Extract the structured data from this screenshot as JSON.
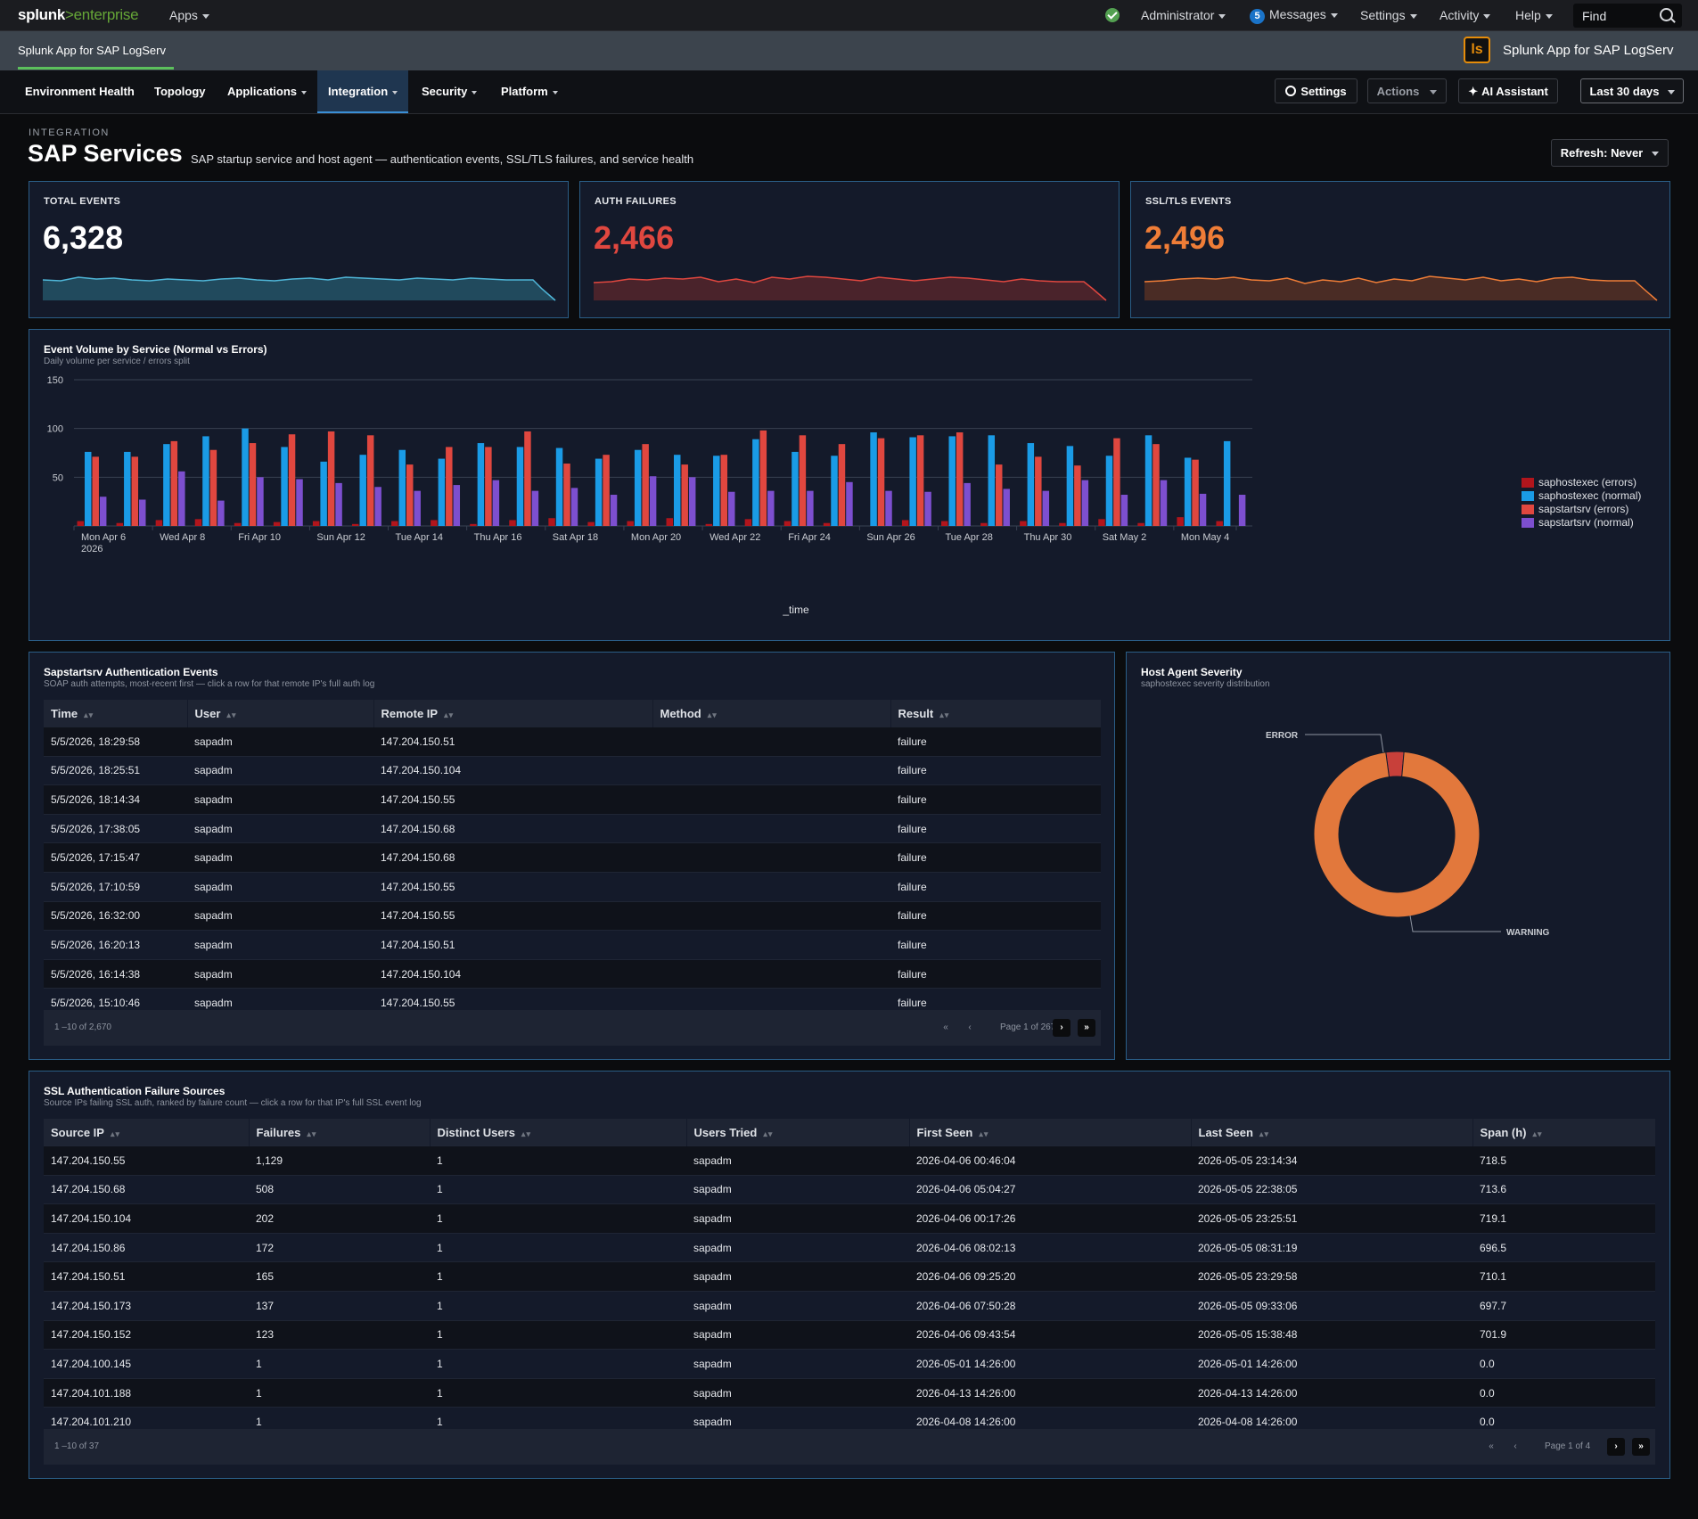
{
  "topbar": {
    "logo_main": "splunk",
    "logo_gt": ">",
    "logo_product": "enterprise",
    "apps_label": "Apps",
    "status_icon": "check-circle-icon",
    "user_label": "Administrator",
    "messages_count": "5",
    "messages_label": "Messages",
    "settings_label": "Settings",
    "activity_label": "Activity",
    "help_label": "Help",
    "find_label": "Find"
  },
  "appbar": {
    "title": "Splunk App for SAP LogServ",
    "logo_text": "ls",
    "right_title": "Splunk App for SAP LogServ"
  },
  "nav": {
    "items": [
      "Environment Health",
      "Topology",
      "Applications",
      "Integration",
      "Security",
      "Platform"
    ],
    "active": "Integration",
    "settings_label": "Settings",
    "actions_label": "Actions",
    "ai_label": "AI Assistant",
    "time_label": "Last 30 days"
  },
  "header": {
    "eyebrow": "INTEGRATION",
    "title": "SAP Services",
    "subtitle": "SAP startup service and host agent — authentication events, SSL/TLS failures, and service health",
    "refresh_label": "Refresh: Never"
  },
  "colors": {
    "accent": "#2a5d86",
    "auth_red": "#e0473f",
    "ssl_orange": "#ef7d37",
    "series_errors_dark": "#b1151c",
    "series_normal_blue": "#1a9be6",
    "series_errors_red": "#e0473f",
    "series_normal_purple": "#7d4fcf"
  },
  "kpis": [
    {
      "label": "TOTAL EVENTS",
      "value": "6,328"
    },
    {
      "label": "AUTH FAILURES",
      "value": "2,466"
    },
    {
      "label": "SSL/TLS EVENTS",
      "value": "2,496"
    }
  ],
  "volume_chart": {
    "title": "Event Volume by Service (Normal vs Errors)",
    "subtitle": "Daily volume per service / errors split"
  },
  "chart_data": {
    "type": "bar",
    "xlabel": "_time",
    "ylabel": "",
    "ylim": [
      0,
      150
    ],
    "yticks": [
      50,
      100,
      150
    ],
    "grid": true,
    "legend": "right",
    "tick_labels": [
      "Mon Apr 6\n2026",
      "Wed Apr 8",
      "Fri Apr 10",
      "Sun Apr 12",
      "Tue Apr 14",
      "Thu Apr 16",
      "Sat Apr 18",
      "Mon Apr 20",
      "Wed Apr 22",
      "Fri Apr 24",
      "Sun Apr 26",
      "Tue Apr 28",
      "Thu Apr 30",
      "Sat May 2",
      "Mon May 4"
    ],
    "categories": [
      "2026-04-06",
      "2026-04-07",
      "2026-04-08",
      "2026-04-09",
      "2026-04-10",
      "2026-04-11",
      "2026-04-12",
      "2026-04-13",
      "2026-04-14",
      "2026-04-15",
      "2026-04-16",
      "2026-04-17",
      "2026-04-18",
      "2026-04-19",
      "2026-04-20",
      "2026-04-21",
      "2026-04-22",
      "2026-04-23",
      "2026-04-24",
      "2026-04-25",
      "2026-04-26",
      "2026-04-27",
      "2026-04-28",
      "2026-04-29",
      "2026-04-30",
      "2026-05-01",
      "2026-05-02",
      "2026-05-03",
      "2026-05-04",
      "2026-05-05"
    ],
    "series": [
      {
        "name": "saphostexec (errors)",
        "values": [
          5,
          3,
          6,
          7,
          3,
          4,
          5,
          2,
          5,
          6,
          2,
          6,
          8,
          4,
          5,
          8,
          2,
          7,
          5,
          3,
          0,
          6,
          5,
          3,
          5,
          3,
          7,
          3,
          9,
          5
        ]
      },
      {
        "name": "saphostexec (normal)",
        "values": [
          76,
          76,
          84,
          92,
          100,
          81,
          66,
          73,
          78,
          69,
          85,
          81,
          80,
          69,
          78,
          73,
          72,
          89,
          76,
          72,
          96,
          91,
          92,
          93,
          85,
          82,
          72,
          93,
          70,
          87
        ]
      },
      {
        "name": "sapstartsrv (errors)",
        "values": [
          71,
          71,
          87,
          78,
          85,
          94,
          97,
          93,
          63,
          81,
          81,
          97,
          64,
          73,
          84,
          63,
          73,
          98,
          93,
          84,
          90,
          93,
          96,
          63,
          71,
          62,
          90,
          84,
          68,
          0
        ]
      },
      {
        "name": "sapstartsrv (normal)",
        "values": [
          30,
          27,
          56,
          26,
          50,
          48,
          44,
          40,
          36,
          42,
          47,
          36,
          39,
          32,
          51,
          50,
          35,
          36,
          36,
          45,
          36,
          35,
          44,
          38,
          36,
          47,
          32,
          47,
          33,
          32
        ]
      }
    ]
  },
  "auth_table": {
    "title": "Sapstartsrv Authentication Events",
    "subtitle": "SOAP auth attempts, most-recent first — click a row for that remote IP's full auth log",
    "columns": [
      "Time",
      "User",
      "Remote IP",
      "Method",
      "Result"
    ],
    "rows": [
      [
        "5/5/2026, 18:29:58",
        "sapadm",
        "147.204.150.51",
        "",
        "failure"
      ],
      [
        "5/5/2026, 18:25:51",
        "sapadm",
        "147.204.150.104",
        "",
        "failure"
      ],
      [
        "5/5/2026, 18:14:34",
        "sapadm",
        "147.204.150.55",
        "",
        "failure"
      ],
      [
        "5/5/2026, 17:38:05",
        "sapadm",
        "147.204.150.68",
        "",
        "failure"
      ],
      [
        "5/5/2026, 17:15:47",
        "sapadm",
        "147.204.150.68",
        "",
        "failure"
      ],
      [
        "5/5/2026, 17:10:59",
        "sapadm",
        "147.204.150.55",
        "",
        "failure"
      ],
      [
        "5/5/2026, 16:32:00",
        "sapadm",
        "147.204.150.55",
        "",
        "failure"
      ],
      [
        "5/5/2026, 16:20:13",
        "sapadm",
        "147.204.150.51",
        "",
        "failure"
      ],
      [
        "5/5/2026, 16:14:38",
        "sapadm",
        "147.204.150.104",
        "",
        "failure"
      ],
      [
        "5/5/2026, 15:10:46",
        "sapadm",
        "147.204.150.55",
        "",
        "failure"
      ]
    ],
    "range_label": "1 –10  of 2,670",
    "page_label": "Page 1  of 267"
  },
  "severity": {
    "title": "Host Agent Severity",
    "subtitle": "saphostexec severity distribution",
    "labels": [
      "ERROR",
      "WARNING"
    ],
    "values": [
      3.5,
      96.5
    ],
    "colors": [
      "#c8403a",
      "#e2783c"
    ]
  },
  "ssl_table": {
    "title": "SSL Authentication Failure Sources",
    "subtitle": "Source IPs failing SSL auth, ranked by failure count — click a row for that IP's full SSL event log",
    "columns": [
      "Source IP",
      "Failures",
      "Distinct Users",
      "Users Tried",
      "First Seen",
      "Last Seen",
      "Span (h)"
    ],
    "rows": [
      [
        "147.204.150.55",
        "1,129",
        "1",
        "sapadm",
        "2026-04-06 00:46:04",
        "2026-05-05 23:14:34",
        "718.5"
      ],
      [
        "147.204.150.68",
        "508",
        "1",
        "sapadm",
        "2026-04-06 05:04:27",
        "2026-05-05 22:38:05",
        "713.6"
      ],
      [
        "147.204.150.104",
        "202",
        "1",
        "sapadm",
        "2026-04-06 00:17:26",
        "2026-05-05 23:25:51",
        "719.1"
      ],
      [
        "147.204.150.86",
        "172",
        "1",
        "sapadm",
        "2026-04-06 08:02:13",
        "2026-05-05 08:31:19",
        "696.5"
      ],
      [
        "147.204.150.51",
        "165",
        "1",
        "sapadm",
        "2026-04-06 09:25:20",
        "2026-05-05 23:29:58",
        "710.1"
      ],
      [
        "147.204.150.173",
        "137",
        "1",
        "sapadm",
        "2026-04-06 07:50:28",
        "2026-05-05 09:33:06",
        "697.7"
      ],
      [
        "147.204.150.152",
        "123",
        "1",
        "sapadm",
        "2026-04-06 09:43:54",
        "2026-05-05 15:38:48",
        "701.9"
      ],
      [
        "147.204.100.145",
        "1",
        "1",
        "sapadm",
        "2026-05-01 14:26:00",
        "2026-05-01 14:26:00",
        "0.0"
      ],
      [
        "147.204.101.188",
        "1",
        "1",
        "sapadm",
        "2026-04-13 14:26:00",
        "2026-04-13 14:26:00",
        "0.0"
      ],
      [
        "147.204.101.210",
        "1",
        "1",
        "sapadm",
        "2026-04-08 14:26:00",
        "2026-04-08 14:26:00",
        "0.0"
      ]
    ],
    "range_label": "1 –10  of 37",
    "page_label": "Page 1  of 4"
  }
}
